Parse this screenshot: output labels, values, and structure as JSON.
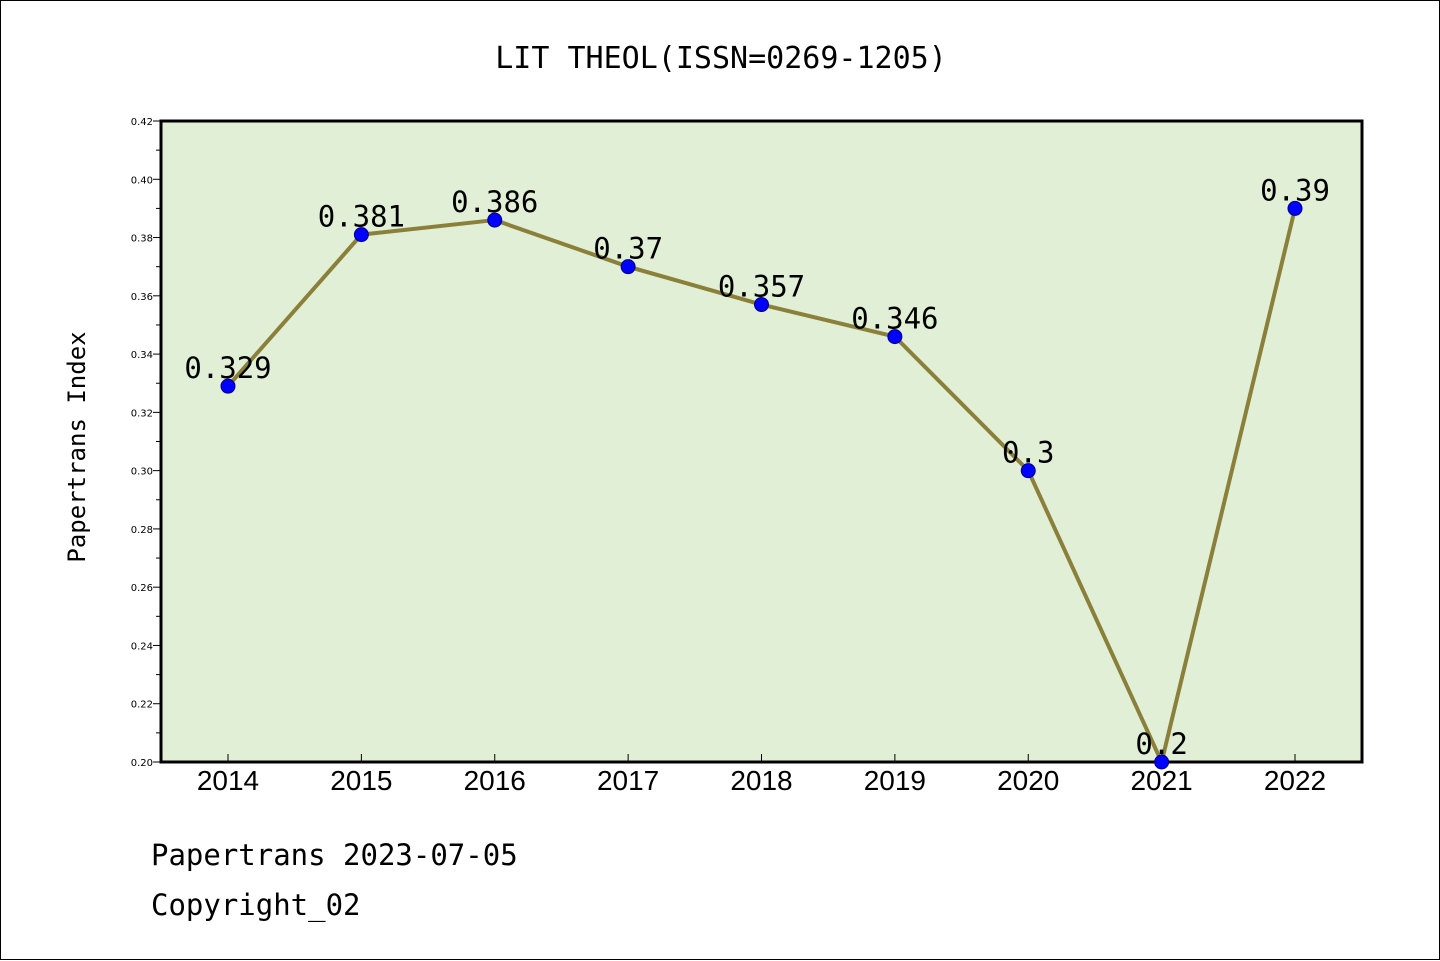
{
  "chart_data": {
    "type": "line",
    "title": "LIT THEOL(ISSN=0269-1205)",
    "ylabel": "Papertrans Index",
    "xlabel": "",
    "categories": [
      "2014",
      "2015",
      "2016",
      "2017",
      "2018",
      "2019",
      "2020",
      "2021",
      "2022"
    ],
    "series": [
      {
        "values": [
          0.329,
          0.381,
          0.386,
          0.37,
          0.357,
          0.346,
          0.3,
          0.2,
          0.39
        ],
        "labels": [
          "0.329",
          "0.381",
          "0.386",
          "0.37",
          "0.357",
          "0.346",
          "0.3",
          "0.2",
          "0.39"
        ]
      }
    ],
    "ylim": [
      0.2,
      0.42
    ],
    "yticks": [
      "0.20",
      "0.22",
      "0.24",
      "0.26",
      "0.28",
      "0.30",
      "0.32",
      "0.34",
      "0.36",
      "0.38",
      "0.40",
      "0.42"
    ],
    "grid": false,
    "colors": {
      "plot_background": "#e1efd6",
      "line": "#8b803a",
      "marker": "#0000ff",
      "marker_edge": "#000080"
    }
  },
  "footer": {
    "line1": "Papertrans 2023-07-05",
    "line2": "Copyright_02"
  }
}
